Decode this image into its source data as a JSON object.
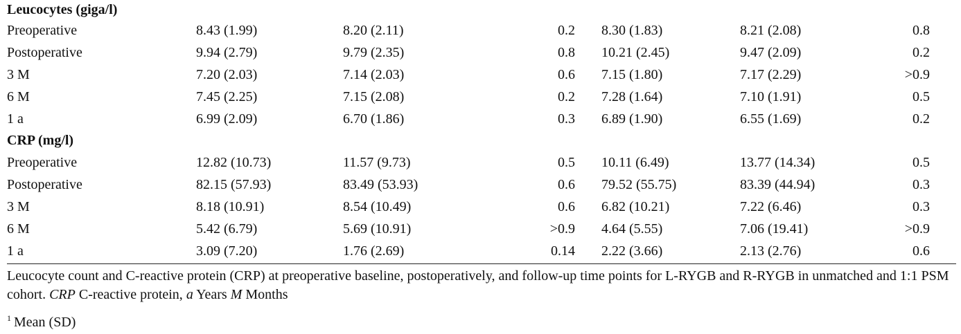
{
  "sections": [
    {
      "title": "Leucocytes (giga/l)",
      "rows": [
        {
          "label": "Preoperative",
          "cells": [
            "8.43 (1.99)",
            "8.20 (2.11)",
            "0.2",
            "8.30 (1.83)",
            "8.21 (2.08)",
            "0.8"
          ]
        },
        {
          "label": "Postoperative",
          "cells": [
            "9.94 (2.79)",
            "9.79 (2.35)",
            "0.8",
            "10.21 (2.45)",
            "9.47 (2.09)",
            "0.2"
          ]
        },
        {
          "label": "3 M",
          "cells": [
            "7.20 (2.03)",
            "7.14 (2.03)",
            "0.6",
            "7.15 (1.80)",
            "7.17 (2.29)",
            ">0.9"
          ]
        },
        {
          "label": "6 M",
          "cells": [
            "7.45 (2.25)",
            "7.15 (2.08)",
            "0.2",
            "7.28 (1.64)",
            "7.10 (1.91)",
            "0.5"
          ]
        },
        {
          "label": "1 a",
          "cells": [
            "6.99 (2.09)",
            "6.70 (1.86)",
            "0.3",
            "6.89 (1.90)",
            "6.55 (1.69)",
            "0.2"
          ]
        }
      ]
    },
    {
      "title": "CRP (mg/l)",
      "rows": [
        {
          "label": "Preoperative",
          "cells": [
            "12.82 (10.73)",
            "11.57 (9.73)",
            "0.5",
            "10.11 (6.49)",
            "13.77 (14.34)",
            "0.5"
          ]
        },
        {
          "label": "Postoperative",
          "cells": [
            "82.15 (57.93)",
            "83.49 (53.93)",
            "0.6",
            "79.52 (55.75)",
            "83.39 (44.94)",
            "0.3"
          ]
        },
        {
          "label": "3 M",
          "cells": [
            "8.18 (10.91)",
            "8.54 (10.49)",
            "0.6",
            "6.82 (10.21)",
            "7.22 (6.46)",
            "0.3"
          ]
        },
        {
          "label": "6 M",
          "cells": [
            "5.42 (6.79)",
            "5.69 (10.91)",
            ">0.9",
            "4.64 (5.55)",
            "7.06 (19.41)",
            ">0.9"
          ]
        },
        {
          "label": "1 a",
          "cells": [
            "3.09 (7.20)",
            "1.76 (2.69)",
            "0.14",
            "2.22 (3.66)",
            "2.13 (2.76)",
            "0.6"
          ]
        }
      ]
    }
  ],
  "caption": {
    "text1": "Leucocyte count and C-reactive protein (CRP) at preoperative baseline, postoperatively, and follow-up time points for L-RYGB and R-RYGB in unmatched and 1:1 PSM cohort. ",
    "abbr1": "CRP",
    "text2": " C-reactive protein, ",
    "abbr2": "a",
    "text3": " Years ",
    "abbr3": "M",
    "text4": " Months"
  },
  "footnote": {
    "marker": "1",
    "text": "Mean (SD)"
  }
}
